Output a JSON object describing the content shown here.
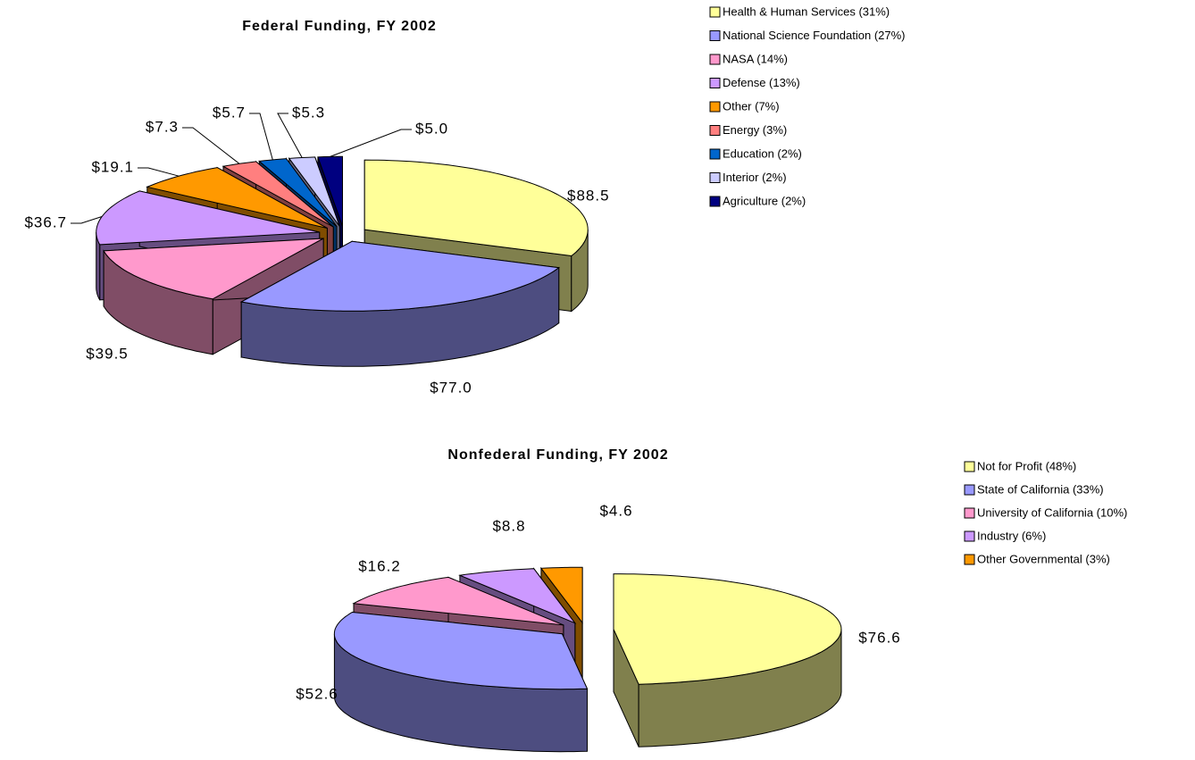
{
  "chart_data": [
    {
      "type": "pie",
      "title": "Federal Funding, FY 2002",
      "categories": [
        "Health & Human Services (31%)",
        "National Science Foundation (27%)",
        "NASA (14%)",
        "Defense (13%)",
        "Other (7%)",
        "Energy (3%)",
        "Education (2%)",
        "Interior (2%)",
        "Agriculture (2%)"
      ],
      "values": [
        88.5,
        77,
        39.5,
        36.7,
        19.1,
        7.3,
        5.7,
        5.3,
        5
      ],
      "value_labels": [
        "$88.5",
        "$77.0",
        "$39.5",
        "$36.7",
        "$19.1",
        "$7.3",
        "$5.7",
        "$5.3",
        "$5.0"
      ],
      "colors": [
        "#ffff99",
        "#9999ff",
        "#ff99cc",
        "#cc99ff",
        "#ff9900",
        "#ff7f7f",
        "#0066cc",
        "#ccccff",
        "#000080"
      ]
    },
    {
      "type": "pie",
      "title": "Nonfederal Funding, FY 2002",
      "categories": [
        "Not for Profit (48%)",
        "State of California (33%)",
        "University of California (10%)",
        "Industry (6%)",
        "Other Governmental (3%)"
      ],
      "values": [
        76.6,
        52.6,
        16.2,
        8.8,
        4.6
      ],
      "value_labels": [
        "$76.6",
        "$52.6",
        "$16.2",
        "$8.8",
        "$4.6"
      ],
      "colors": [
        "#ffff99",
        "#9999ff",
        "#ff99cc",
        "#cc99ff",
        "#ff9900"
      ]
    }
  ]
}
